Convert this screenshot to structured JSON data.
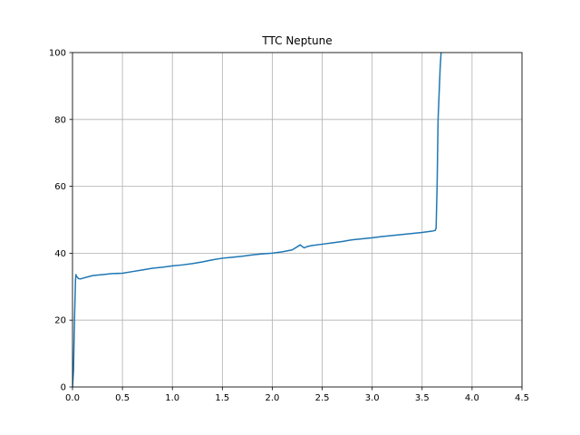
{
  "chart_data": {
    "type": "line",
    "title": "TTC Neptune",
    "xlabel": "",
    "ylabel": "",
    "xlim": [
      0.0,
      4.5
    ],
    "ylim": [
      0,
      100
    ],
    "grid": true,
    "legend": "none",
    "x_ticks": [
      "0.0",
      "0.5",
      "1.0",
      "1.5",
      "2.0",
      "2.5",
      "3.0",
      "3.5",
      "4.0",
      "4.5"
    ],
    "y_ticks": [
      "0",
      "20",
      "40",
      "60",
      "80",
      "100"
    ],
    "series": [
      {
        "color": "#1f77b4",
        "x": [
          0.0,
          0.01,
          0.02,
          0.03,
          0.035,
          0.04,
          0.05,
          0.06,
          0.08,
          0.1,
          0.15,
          0.2,
          0.3,
          0.4,
          0.5,
          0.6,
          0.7,
          0.8,
          0.9,
          1.0,
          1.1,
          1.2,
          1.3,
          1.4,
          1.5,
          1.6,
          1.7,
          1.8,
          1.9,
          2.0,
          2.1,
          2.2,
          2.28,
          2.3,
          2.32,
          2.35,
          2.4,
          2.5,
          2.6,
          2.7,
          2.8,
          2.9,
          3.0,
          3.1,
          3.2,
          3.3,
          3.4,
          3.5,
          3.6,
          3.63,
          3.64,
          3.65,
          3.66,
          3.68,
          3.69
        ],
        "values": [
          0.0,
          5.0,
          20.0,
          32.0,
          33.6,
          33.0,
          32.8,
          32.4,
          32.3,
          32.5,
          32.9,
          33.3,
          33.6,
          33.9,
          34.0,
          34.5,
          35.0,
          35.5,
          35.8,
          36.2,
          36.5,
          36.9,
          37.4,
          38.0,
          38.5,
          38.8,
          39.1,
          39.5,
          39.8,
          40.0,
          40.4,
          41.0,
          42.5,
          42.0,
          41.6,
          42.0,
          42.3,
          42.7,
          43.1,
          43.5,
          44.0,
          44.3,
          44.6,
          45.0,
          45.3,
          45.6,
          45.9,
          46.2,
          46.6,
          46.8,
          47.5,
          60.0,
          80.0,
          95.0,
          100.0
        ]
      }
    ]
  }
}
